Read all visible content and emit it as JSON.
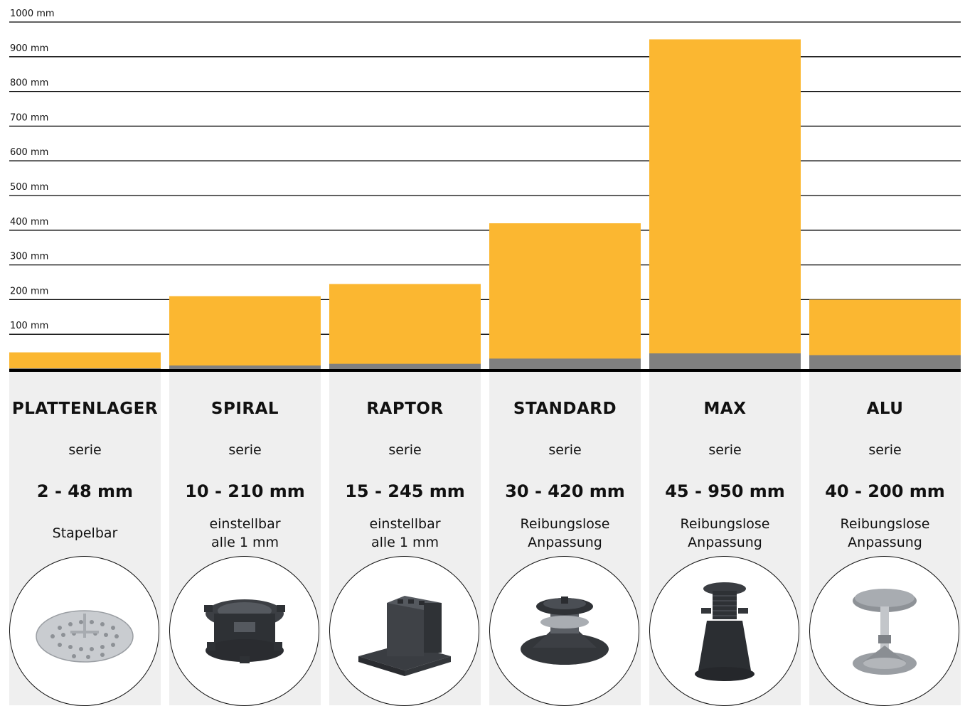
{
  "chart_data": {
    "type": "bar",
    "ylim": [
      0,
      1000
    ],
    "y_ticks": [
      "100 mm",
      "200 mm",
      "300 mm",
      "400 mm",
      "500 mm",
      "600 mm",
      "700 mm",
      "800 mm",
      "900 mm",
      "1000 mm"
    ],
    "y_tick_values": [
      100,
      200,
      300,
      400,
      500,
      600,
      700,
      800,
      900,
      1000
    ],
    "grid": true,
    "categories": [
      "PLATTENLAGER",
      "SPIRAL",
      "RAPTOR",
      "STANDARD",
      "MAX",
      "ALU"
    ],
    "series": [
      {
        "values": [
          2,
          10,
          15,
          30,
          45,
          40
        ]
      },
      {
        "values": [
          48,
          210,
          245,
          420,
          950,
          200
        ]
      }
    ],
    "colors": {
      "max": "#fbb731",
      "min": "#808080",
      "baseline": "#000000",
      "grid": "#000000"
    }
  },
  "columns": [
    {
      "name": "PLATTENLAGER",
      "serie": "serie",
      "range": "2 - 48 mm",
      "desc": "Stapelbar",
      "icon": "perforated-disc-pad-icon"
    },
    {
      "name": "SPIRAL",
      "serie": "serie",
      "range": "10 - 210 mm",
      "desc": "einstellbar\nalle 1 mm",
      "icon": "spiral-pedestal-icon"
    },
    {
      "name": "RAPTOR",
      "serie": "serie",
      "range": "15 - 245 mm",
      "desc": "einstellbar\nalle 1 mm",
      "icon": "raptor-pedestal-icon"
    },
    {
      "name": "STANDARD",
      "serie": "serie",
      "range": "30 - 420 mm",
      "desc": "Reibungslose\nAnpassung",
      "icon": "standard-pedestal-icon"
    },
    {
      "name": "MAX",
      "serie": "serie",
      "range": "45 - 950 mm",
      "desc": "Reibungslose\nAnpassung",
      "icon": "max-pedestal-icon"
    },
    {
      "name": "ALU",
      "serie": "serie",
      "range": "40 - 200 mm",
      "desc": "Reibungslose\nAnpassung",
      "icon": "alu-pedestal-icon"
    }
  ]
}
